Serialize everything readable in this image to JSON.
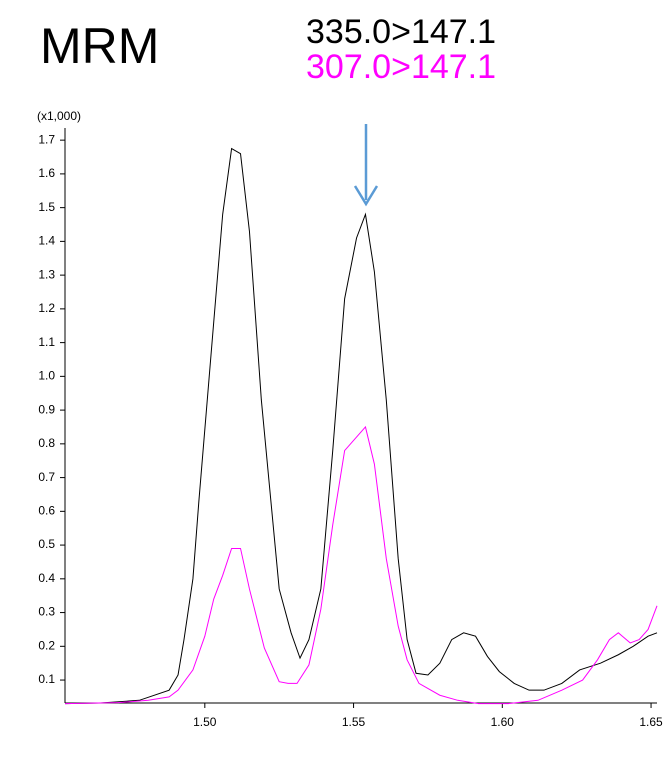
{
  "chart_data": {
    "type": "line",
    "title": "MRM",
    "y_unit_label": "(x1,000)",
    "xlim": [
      1.453,
      1.652
    ],
    "xticks": [
      {
        "value": 1.5,
        "label": "1.50"
      },
      1.55,
      {
        "value": 1.6,
        "label": "1.60"
      },
      1.65
    ],
    "ylim": [
      0.032,
      1.736
    ],
    "yticks": [
      0.1,
      0.2,
      0.3,
      0.4,
      0.5,
      0.6,
      0.7,
      0.8,
      0.9,
      {
        "value": 1,
        "label": "1.0"
      },
      1.1,
      1.2,
      1.3,
      1.4,
      1.5,
      1.6,
      1.7
    ],
    "series": [
      {
        "name": "335.0>147.1",
        "color": "#000000",
        "x": [
          1.453,
          1.465,
          1.478,
          1.488,
          1.491,
          1.493,
          1.496,
          1.498,
          1.506,
          1.509,
          1.512,
          1.515,
          1.519,
          1.525,
          1.529,
          1.532,
          1.535,
          1.539,
          1.543,
          1.547,
          1.551,
          1.554,
          1.557,
          1.561,
          1.565,
          1.568,
          1.571,
          1.575,
          1.579,
          1.583,
          1.587,
          1.591,
          1.595,
          1.599,
          1.604,
          1.609,
          1.614,
          1.62,
          1.626,
          1.633,
          1.639,
          1.644,
          1.649,
          1.652
        ],
        "values": [
          0.03,
          0.032,
          0.04,
          0.07,
          0.115,
          0.22,
          0.4,
          0.63,
          1.48,
          1.675,
          1.66,
          1.43,
          0.93,
          0.37,
          0.24,
          0.165,
          0.22,
          0.37,
          0.78,
          1.23,
          1.41,
          1.48,
          1.31,
          0.93,
          0.46,
          0.22,
          0.12,
          0.115,
          0.15,
          0.22,
          0.24,
          0.23,
          0.17,
          0.125,
          0.09,
          0.07,
          0.07,
          0.09,
          0.13,
          0.15,
          0.175,
          0.2,
          0.23,
          0.24
        ]
      },
      {
        "name": "307.0>147.1",
        "color": "#ff00ff",
        "x": [
          1.453,
          1.471,
          1.481,
          1.488,
          1.491,
          1.496,
          1.5,
          1.503,
          1.506,
          1.509,
          1.512,
          1.515,
          1.52,
          1.525,
          1.528,
          1.531,
          1.535,
          1.539,
          1.543,
          1.547,
          1.551,
          1.554,
          1.557,
          1.561,
          1.565,
          1.568,
          1.572,
          1.579,
          1.585,
          1.592,
          1.602,
          1.612,
          1.62,
          1.627,
          1.632,
          1.636,
          1.639,
          1.643,
          1.646,
          1.649,
          1.652
        ],
        "values": [
          0.03,
          0.033,
          0.04,
          0.05,
          0.07,
          0.13,
          0.23,
          0.34,
          0.41,
          0.49,
          0.49,
          0.37,
          0.195,
          0.095,
          0.09,
          0.09,
          0.145,
          0.31,
          0.56,
          0.78,
          0.82,
          0.85,
          0.74,
          0.46,
          0.26,
          0.16,
          0.09,
          0.055,
          0.04,
          0.03,
          0.03,
          0.04,
          0.07,
          0.1,
          0.16,
          0.22,
          0.24,
          0.21,
          0.22,
          0.25,
          0.32
        ]
      }
    ]
  }
}
